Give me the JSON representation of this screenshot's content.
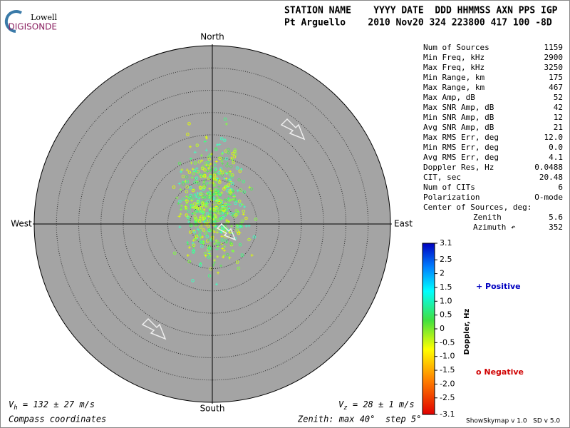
{
  "logo": {
    "top": "Lowell",
    "bottom": "DIGISONDE"
  },
  "header": {
    "line1": "STATION NAME    YYYY DATE  DDD HHMMSS AXN PPS IGP",
    "line2": "Pt Arguello    2010 Nov20 324 223800 417 100 -8D"
  },
  "compass": {
    "north": "North",
    "south": "South",
    "west": "West",
    "east": "East"
  },
  "stats": [
    [
      "Num of Sources",
      "1159"
    ],
    [
      "Min Freq, kHz",
      "2900"
    ],
    [
      "Max Freq, kHz",
      "3250"
    ],
    [
      "Min Range, km",
      "175"
    ],
    [
      "Max Range, km",
      "467"
    ],
    [
      "Max Amp, dB",
      "52"
    ],
    [
      "Max SNR Amp, dB",
      "42"
    ],
    [
      "Min SNR Amp, dB",
      "12"
    ],
    [
      "Avg SNR Amp, dB",
      "21"
    ],
    [
      "Max RMS Err, deg",
      "12.0"
    ],
    [
      "Min RMS Err, deg",
      "0.0"
    ],
    [
      "Avg RMS Err, deg",
      "4.1"
    ],
    [
      "Doppler Res, Hz",
      "0.0488"
    ],
    [
      "CIT, sec",
      "20.48"
    ],
    [
      "Num of CITs",
      "6"
    ],
    [
      "Polarization",
      "O-mode"
    ]
  ],
  "center": {
    "title": "Center of Sources, deg:",
    "rows": [
      [
        "Zenith",
        "5.6"
      ],
      [
        "Azimuth ↶",
        "352"
      ]
    ]
  },
  "colorbar": {
    "label": "Doppler, Hz",
    "range": [
      -3.1,
      3.1
    ],
    "ticks": [
      3.1,
      2.5,
      2,
      1.5,
      {
        "value": 1,
        "label": "1.0"
      },
      0.5,
      0,
      -0.5,
      {
        "value": -1,
        "label": "-1.0"
      },
      -1.5,
      {
        "value": -2,
        "label": "-2.0"
      },
      -2.5,
      -3.1
    ]
  },
  "legend": {
    "positive": "+ Positive",
    "negative": "o Negative"
  },
  "footer": {
    "vh": {
      "symbol": "V",
      "sub": "h",
      "text": " = 132 ± 27 m/s"
    },
    "vz": {
      "symbol": "V",
      "sub": "z",
      "text": " = 28 ± 1 m/s"
    },
    "coords": "Compass coordinates",
    "zenith": "Zenith: max 40°  step 5°",
    "version": "ShowSkymap v 1.0   SD v 5.0"
  }
}
